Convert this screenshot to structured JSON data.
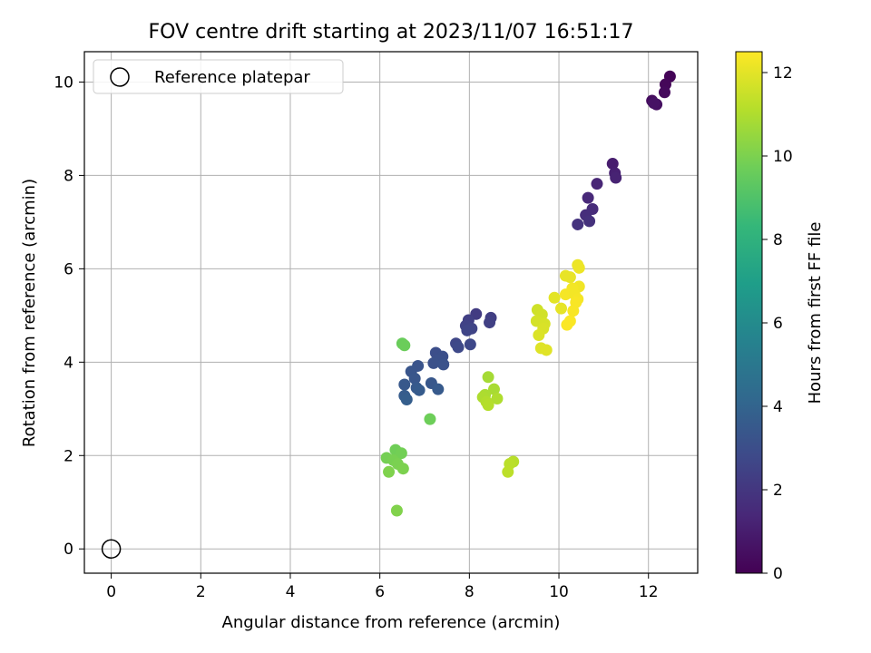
{
  "chart_data": {
    "type": "scatter",
    "title": "FOV centre drift starting at 2023/11/07 16:51:17",
    "xlabel": "Angular distance from reference (arcmin)",
    "ylabel": "Rotation from reference (arcmin)",
    "xlim": [
      -0.6,
      13.1
    ],
    "ylim": [
      -0.52,
      10.65
    ],
    "xticks": [
      0,
      2,
      4,
      6,
      8,
      10,
      12
    ],
    "yticks": [
      0,
      2,
      4,
      6,
      8,
      10
    ],
    "grid": true,
    "legend": {
      "position": "top-left",
      "entries": [
        "Reference platepar"
      ]
    },
    "reference_point": {
      "name": "Reference platepar",
      "x": 0,
      "y": 0
    },
    "colorbar": {
      "label": "Hours from first FF file",
      "colormap": "viridis",
      "range": [
        0,
        12.5
      ],
      "ticks": [
        0,
        2,
        4,
        6,
        8,
        10,
        12
      ]
    },
    "colormap_stops": [
      "#440154",
      "#482878",
      "#3e4989",
      "#31688e",
      "#26828e",
      "#1f9e89",
      "#35b779",
      "#6ece58",
      "#b5de2b",
      "#fde725"
    ],
    "series": [
      {
        "points": [
          {
            "x": 12.48,
            "y": 10.12,
            "c": 0.1
          },
          {
            "x": 12.38,
            "y": 9.95,
            "c": 0.2
          },
          {
            "x": 12.36,
            "y": 9.78,
            "c": 0.3
          },
          {
            "x": 12.08,
            "y": 9.6,
            "c": 0.4
          },
          {
            "x": 12.18,
            "y": 9.52,
            "c": 0.5
          },
          {
            "x": 12.12,
            "y": 9.55,
            "c": 0.6
          },
          {
            "x": 11.2,
            "y": 8.25,
            "c": 1.0
          },
          {
            "x": 11.25,
            "y": 8.05,
            "c": 1.1
          },
          {
            "x": 11.27,
            "y": 7.95,
            "c": 1.2
          },
          {
            "x": 10.85,
            "y": 7.82,
            "c": 1.3
          },
          {
            "x": 10.65,
            "y": 7.52,
            "c": 1.45
          },
          {
            "x": 10.75,
            "y": 7.28,
            "c": 1.55
          },
          {
            "x": 10.6,
            "y": 7.15,
            "c": 1.65
          },
          {
            "x": 10.68,
            "y": 7.02,
            "c": 1.75
          },
          {
            "x": 10.42,
            "y": 6.95,
            "c": 1.85
          },
          {
            "x": 8.15,
            "y": 5.03,
            "c": 2.2
          },
          {
            "x": 8.48,
            "y": 4.95,
            "c": 2.3
          },
          {
            "x": 7.98,
            "y": 4.9,
            "c": 2.35
          },
          {
            "x": 8.45,
            "y": 4.85,
            "c": 2.4
          },
          {
            "x": 7.92,
            "y": 4.78,
            "c": 2.5
          },
          {
            "x": 8.05,
            "y": 4.72,
            "c": 2.55
          },
          {
            "x": 7.95,
            "y": 4.68,
            "c": 2.6
          },
          {
            "x": 7.7,
            "y": 4.4,
            "c": 2.7
          },
          {
            "x": 8.02,
            "y": 4.38,
            "c": 2.75
          },
          {
            "x": 7.75,
            "y": 4.32,
            "c": 2.8
          },
          {
            "x": 7.25,
            "y": 4.2,
            "c": 3.0
          },
          {
            "x": 7.4,
            "y": 4.12,
            "c": 3.05
          },
          {
            "x": 7.32,
            "y": 4.05,
            "c": 3.1
          },
          {
            "x": 7.2,
            "y": 3.98,
            "c": 3.15
          },
          {
            "x": 7.42,
            "y": 3.95,
            "c": 3.2
          },
          {
            "x": 6.85,
            "y": 3.92,
            "c": 3.25
          },
          {
            "x": 6.7,
            "y": 3.8,
            "c": 3.3
          },
          {
            "x": 6.78,
            "y": 3.65,
            "c": 3.35
          },
          {
            "x": 7.15,
            "y": 3.55,
            "c": 3.4
          },
          {
            "x": 6.55,
            "y": 3.52,
            "c": 3.45
          },
          {
            "x": 6.82,
            "y": 3.45,
            "c": 3.5
          },
          {
            "x": 7.3,
            "y": 3.42,
            "c": 3.55
          },
          {
            "x": 6.88,
            "y": 3.4,
            "c": 3.6
          },
          {
            "x": 6.55,
            "y": 3.28,
            "c": 3.65
          },
          {
            "x": 6.6,
            "y": 3.2,
            "c": 3.7
          },
          {
            "x": 6.5,
            "y": 4.4,
            "c": 9.6
          },
          {
            "x": 6.55,
            "y": 4.36,
            "c": 9.65
          },
          {
            "x": 7.12,
            "y": 2.78,
            "c": 9.7
          },
          {
            "x": 6.35,
            "y": 2.12,
            "c": 9.75
          },
          {
            "x": 6.48,
            "y": 2.05,
            "c": 9.8
          },
          {
            "x": 6.15,
            "y": 1.95,
            "c": 9.85
          },
          {
            "x": 6.3,
            "y": 1.9,
            "c": 9.9
          },
          {
            "x": 6.4,
            "y": 1.82,
            "c": 9.95
          },
          {
            "x": 6.52,
            "y": 1.72,
            "c": 10.0
          },
          {
            "x": 6.2,
            "y": 1.65,
            "c": 10.05
          },
          {
            "x": 6.38,
            "y": 0.82,
            "c": 10.1
          },
          {
            "x": 8.42,
            "y": 3.68,
            "c": 10.8
          },
          {
            "x": 8.55,
            "y": 3.42,
            "c": 10.85
          },
          {
            "x": 8.35,
            "y": 3.3,
            "c": 10.9
          },
          {
            "x": 8.3,
            "y": 3.25,
            "c": 10.95
          },
          {
            "x": 8.62,
            "y": 3.22,
            "c": 11.0
          },
          {
            "x": 8.38,
            "y": 3.15,
            "c": 11.05
          },
          {
            "x": 8.42,
            "y": 3.08,
            "c": 11.1
          },
          {
            "x": 8.98,
            "y": 1.87,
            "c": 11.15
          },
          {
            "x": 8.9,
            "y": 1.82,
            "c": 11.2
          },
          {
            "x": 8.86,
            "y": 1.65,
            "c": 11.25
          },
          {
            "x": 9.52,
            "y": 5.12,
            "c": 11.6
          },
          {
            "x": 9.62,
            "y": 5.02,
            "c": 11.65
          },
          {
            "x": 9.5,
            "y": 4.88,
            "c": 11.7
          },
          {
            "x": 9.68,
            "y": 4.82,
            "c": 11.75
          },
          {
            "x": 9.65,
            "y": 4.72,
            "c": 11.8
          },
          {
            "x": 9.55,
            "y": 4.58,
            "c": 11.85
          },
          {
            "x": 9.6,
            "y": 4.3,
            "c": 11.9
          },
          {
            "x": 9.72,
            "y": 4.26,
            "c": 11.95
          },
          {
            "x": 9.9,
            "y": 5.38,
            "c": 12.0
          },
          {
            "x": 10.05,
            "y": 5.15,
            "c": 12.05
          },
          {
            "x": 10.15,
            "y": 5.85,
            "c": 12.1
          },
          {
            "x": 10.25,
            "y": 5.82,
            "c": 12.1
          },
          {
            "x": 10.42,
            "y": 6.08,
            "c": 12.15
          },
          {
            "x": 10.45,
            "y": 6.02,
            "c": 12.2
          },
          {
            "x": 10.45,
            "y": 5.62,
            "c": 12.25
          },
          {
            "x": 10.3,
            "y": 5.58,
            "c": 12.3
          },
          {
            "x": 10.15,
            "y": 5.45,
            "c": 12.35
          },
          {
            "x": 10.35,
            "y": 5.45,
            "c": 12.3
          },
          {
            "x": 10.42,
            "y": 5.35,
            "c": 12.35
          },
          {
            "x": 10.38,
            "y": 5.28,
            "c": 12.4
          },
          {
            "x": 10.32,
            "y": 5.1,
            "c": 12.4
          },
          {
            "x": 10.25,
            "y": 4.88,
            "c": 12.45
          },
          {
            "x": 10.18,
            "y": 4.8,
            "c": 12.45
          }
        ]
      }
    ]
  }
}
